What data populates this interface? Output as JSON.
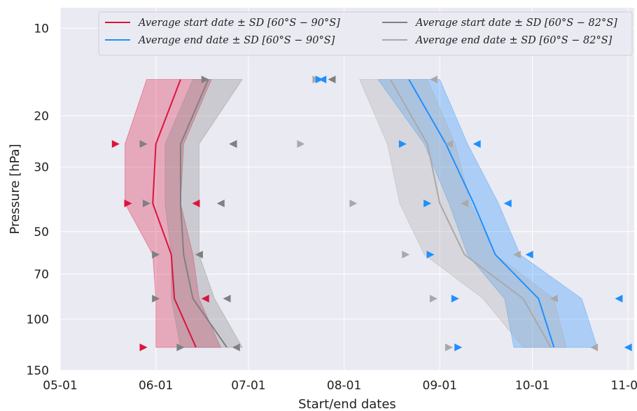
{
  "chart_data": {
    "type": "line",
    "title": "",
    "xlabel": "Start/end dates",
    "ylabel": "Pressure [hPa]",
    "x_axis": {
      "type": "date",
      "range": [
        "2000-05-01",
        "2000-11-03"
      ],
      "ticks": [
        "2000-05-01",
        "2000-06-01",
        "2000-07-01",
        "2000-08-01",
        "2000-09-01",
        "2000-10-01",
        "2000-11-01"
      ],
      "tick_labels": [
        "05-01",
        "06-01",
        "07-01",
        "08-01",
        "09-01",
        "10-01",
        "11-01"
      ]
    },
    "y_axis": {
      "type": "log",
      "inverted": true,
      "range": [
        150,
        8.5
      ],
      "ticks": [
        10,
        20,
        30,
        50,
        70,
        100,
        150
      ],
      "tick_labels": [
        "10",
        "20",
        "30",
        "50",
        "70",
        "100",
        "150"
      ]
    },
    "grid": true,
    "background": "#eaeaf2",
    "legend": {
      "placement": "top-right",
      "entries": [
        {
          "label": "Average start date ± SD [60°S − 90°S]",
          "color": "#dc143c"
        },
        {
          "label": "Average end date ± SD [60°S − 90°S]",
          "color": "#1e90ff"
        },
        {
          "label": "Average start date ± SD [60°S − 82°S]",
          "color": "#808080"
        },
        {
          "label": "Average end date ± SD [60°S − 82°S]",
          "color": "#a9a9a9"
        }
      ]
    },
    "pressure_levels": [
      15,
      25,
      40,
      60,
      85,
      125
    ],
    "series": [
      {
        "name": "Average start date ± SD [60°S − 90°S]",
        "color": "#dc143c",
        "mean": [
          "2000-06-09",
          "2000-06-01",
          "2000-05-31",
          "2000-06-06",
          "2000-06-07",
          "2000-06-14"
        ],
        "lower": [
          "2000-05-29",
          "2000-05-22",
          "2000-05-22",
          "2000-05-31",
          "2000-06-01",
          "2000-06-01"
        ],
        "upper": [
          "2000-06-19",
          "2000-06-10",
          "2000-06-09",
          "2000-06-13",
          "2000-06-15",
          "2000-06-22"
        ]
      },
      {
        "name": "Average end date ± SD [60°S − 90°S]",
        "color": "#1e90ff",
        "mean": [
          "2000-08-22",
          "2000-09-03",
          "2000-09-12",
          "2000-09-19",
          "2000-10-03",
          "2000-10-08"
        ],
        "lower": [
          "2000-08-12",
          "2000-08-27",
          "2000-09-04",
          "2000-09-10",
          "2000-09-22",
          "2000-09-25"
        ],
        "upper": [
          "2000-09-01",
          "2000-09-10",
          "2000-09-20",
          "2000-09-27",
          "2000-10-17",
          "2000-10-22"
        ]
      },
      {
        "name": "Average start date ± SD [60°S − 82°S]",
        "color": "#808080",
        "mean": [
          "2000-06-18",
          "2000-06-09",
          "2000-06-09",
          "2000-06-10",
          "2000-06-13",
          "2000-06-24"
        ],
        "lower": [
          "2000-06-13",
          "2000-06-04",
          "2000-06-04",
          "2000-06-06",
          "2000-06-06",
          "2000-06-09"
        ],
        "upper": [
          "2000-06-29",
          "2000-06-15",
          "2000-06-15",
          "2000-06-15",
          "2000-06-20",
          "2000-06-29"
        ]
      },
      {
        "name": "Average end date ± SD [60°S − 82°S]",
        "color": "#a9a9a9",
        "mean": [
          "2000-08-16",
          "2000-08-28",
          "2000-09-01",
          "2000-09-09",
          "2000-09-28",
          "2000-10-07"
        ],
        "lower": [
          "2000-08-06",
          "2000-08-15",
          "2000-08-19",
          "2000-08-27",
          "2000-09-15",
          "2000-09-28"
        ],
        "upper": [
          "2000-08-28",
          "2000-09-06",
          "2000-09-11",
          "2000-09-19",
          "2000-10-08",
          "2000-10-12"
        ]
      }
    ],
    "markers": [
      {
        "date": "2000-06-17",
        "p": 15,
        "dir": "right",
        "color": "#808080"
      },
      {
        "date": "2000-07-23",
        "p": 15,
        "dir": "right",
        "color": "#a9a9a9"
      },
      {
        "date": "2000-07-24",
        "p": 15,
        "dir": "right",
        "color": "#1e90ff"
      },
      {
        "date": "2000-07-25",
        "p": 15,
        "dir": "left",
        "color": "#1e90ff"
      },
      {
        "date": "2000-07-28",
        "p": 15,
        "dir": "left",
        "color": "#808080"
      },
      {
        "date": "2000-08-30",
        "p": 15,
        "dir": "left",
        "color": "#a9a9a9"
      },
      {
        "date": "2000-05-19",
        "p": 25,
        "dir": "right",
        "color": "#dc143c"
      },
      {
        "date": "2000-05-28",
        "p": 25,
        "dir": "right",
        "color": "#808080"
      },
      {
        "date": "2000-06-26",
        "p": 25,
        "dir": "left",
        "color": "#dc143c"
      },
      {
        "date": "2000-06-26",
        "p": 25,
        "dir": "left",
        "color": "#808080"
      },
      {
        "date": "2000-07-18",
        "p": 25,
        "dir": "right",
        "color": "#a9a9a9"
      },
      {
        "date": "2000-08-20",
        "p": 25,
        "dir": "right",
        "color": "#1e90ff"
      },
      {
        "date": "2000-09-04",
        "p": 25,
        "dir": "left",
        "color": "#a9a9a9"
      },
      {
        "date": "2000-09-13",
        "p": 25,
        "dir": "left",
        "color": "#1e90ff"
      },
      {
        "date": "2000-05-23",
        "p": 40,
        "dir": "right",
        "color": "#dc143c"
      },
      {
        "date": "2000-05-29",
        "p": 40,
        "dir": "right",
        "color": "#808080"
      },
      {
        "date": "2000-06-14",
        "p": 40,
        "dir": "left",
        "color": "#dc143c"
      },
      {
        "date": "2000-06-22",
        "p": 40,
        "dir": "left",
        "color": "#808080"
      },
      {
        "date": "2000-08-04",
        "p": 40,
        "dir": "right",
        "color": "#a9a9a9"
      },
      {
        "date": "2000-08-28",
        "p": 40,
        "dir": "right",
        "color": "#1e90ff"
      },
      {
        "date": "2000-09-09",
        "p": 40,
        "dir": "left",
        "color": "#a9a9a9"
      },
      {
        "date": "2000-09-23",
        "p": 40,
        "dir": "left",
        "color": "#1e90ff"
      },
      {
        "date": "2000-06-01",
        "p": 60,
        "dir": "right",
        "color": "#808080"
      },
      {
        "date": "2000-06-15",
        "p": 60,
        "dir": "left",
        "color": "#808080"
      },
      {
        "date": "2000-08-21",
        "p": 60,
        "dir": "right",
        "color": "#a9a9a9"
      },
      {
        "date": "2000-08-29",
        "p": 60,
        "dir": "right",
        "color": "#1e90ff"
      },
      {
        "date": "2000-09-26",
        "p": 60,
        "dir": "left",
        "color": "#a9a9a9"
      },
      {
        "date": "2000-09-30",
        "p": 60,
        "dir": "left",
        "color": "#1e90ff"
      },
      {
        "date": "2000-06-01",
        "p": 85,
        "dir": "right",
        "color": "#808080"
      },
      {
        "date": "2000-06-17",
        "p": 85,
        "dir": "left",
        "color": "#dc143c"
      },
      {
        "date": "2000-06-24",
        "p": 85,
        "dir": "left",
        "color": "#808080"
      },
      {
        "date": "2000-08-30",
        "p": 85,
        "dir": "right",
        "color": "#a9a9a9"
      },
      {
        "date": "2000-09-06",
        "p": 85,
        "dir": "right",
        "color": "#1e90ff"
      },
      {
        "date": "2000-10-08",
        "p": 85,
        "dir": "left",
        "color": "#a9a9a9"
      },
      {
        "date": "2000-10-29",
        "p": 85,
        "dir": "left",
        "color": "#1e90ff"
      },
      {
        "date": "2000-05-28",
        "p": 125,
        "dir": "right",
        "color": "#dc143c"
      },
      {
        "date": "2000-06-09",
        "p": 125,
        "dir": "right",
        "color": "#808080"
      },
      {
        "date": "2000-06-27",
        "p": 125,
        "dir": "left",
        "color": "#808080"
      },
      {
        "date": "2000-09-04",
        "p": 125,
        "dir": "right",
        "color": "#a9a9a9"
      },
      {
        "date": "2000-09-07",
        "p": 125,
        "dir": "right",
        "color": "#1e90ff"
      },
      {
        "date": "2000-10-21",
        "p": 125,
        "dir": "left",
        "color": "#a9a9a9"
      },
      {
        "date": "2000-11-01",
        "p": 125,
        "dir": "left",
        "color": "#1e90ff"
      }
    ]
  }
}
